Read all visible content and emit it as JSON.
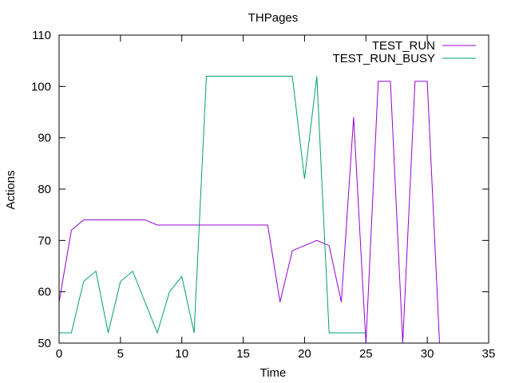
{
  "chart_data": {
    "type": "line",
    "title": "THPages",
    "xlabel": "Time",
    "ylabel": "Actions",
    "xlim": [
      0,
      35
    ],
    "ylim": [
      50,
      110
    ],
    "xticks": [
      0,
      5,
      10,
      15,
      20,
      25,
      30,
      35
    ],
    "yticks": [
      50,
      60,
      70,
      80,
      90,
      100,
      110
    ],
    "grid": false,
    "legend": "top-right",
    "series": [
      {
        "name": "TEST_RUN",
        "color": "#9400d3",
        "x": [
          0,
          1,
          2,
          3,
          4,
          5,
          6,
          7,
          8,
          9,
          10,
          11,
          12,
          13,
          14,
          15,
          16,
          17,
          18,
          19,
          20,
          21,
          22,
          23,
          24,
          25,
          26,
          27,
          28,
          29,
          30,
          31
        ],
        "y": [
          58,
          72,
          74,
          74,
          74,
          74,
          74,
          74,
          73,
          73,
          73,
          73,
          73,
          73,
          73,
          73,
          73,
          73,
          58,
          68,
          69,
          70,
          69,
          58,
          94,
          50,
          101,
          101,
          50,
          101,
          101,
          50
        ]
      },
      {
        "name": "TEST_RUN_BUSY",
        "color": "#009e73",
        "x": [
          0,
          1,
          2,
          3,
          4,
          5,
          6,
          7,
          8,
          9,
          10,
          11,
          12,
          13,
          14,
          15,
          16,
          17,
          18,
          19,
          20,
          21,
          22,
          23,
          24,
          25
        ],
        "y": [
          52,
          52,
          62,
          64,
          52,
          62,
          64,
          58,
          52,
          60,
          63,
          52,
          102,
          102,
          102,
          102,
          102,
          102,
          102,
          102,
          82,
          102,
          52,
          52,
          52,
          52
        ]
      }
    ]
  }
}
